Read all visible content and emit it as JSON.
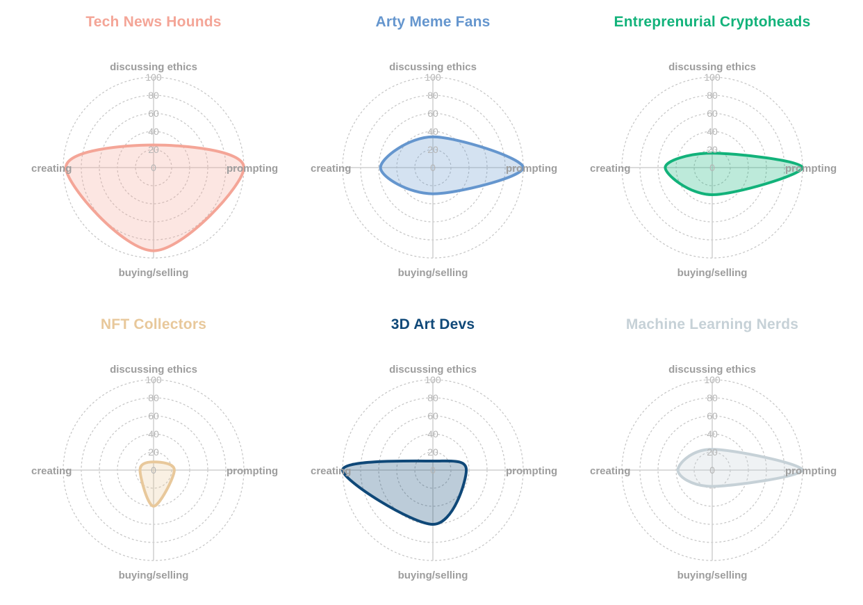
{
  "chart_data": [
    {
      "type": "radar",
      "title": "Tech News Hounds",
      "color": "#f4a597",
      "axes": [
        "discussing ethics",
        "prompting",
        "buying/selling",
        "creating"
      ],
      "values": [
        25,
        100,
        92,
        97
      ],
      "rlim": [
        0,
        100
      ],
      "ticks": [
        0,
        20,
        40,
        60,
        80,
        100
      ]
    },
    {
      "type": "radar",
      "title": "Arty Meme Fans",
      "color": "#6596ce",
      "axes": [
        "discussing ethics",
        "prompting",
        "buying/selling",
        "creating"
      ],
      "values": [
        34,
        100,
        29,
        58
      ],
      "rlim": [
        0,
        100
      ],
      "ticks": [
        0,
        20,
        40,
        60,
        80,
        100
      ]
    },
    {
      "type": "radar",
      "title": "Entreprenurial Cryptoheads",
      "color": "#12b27a",
      "axes": [
        "discussing ethics",
        "prompting",
        "buying/selling",
        "creating"
      ],
      "values": [
        16,
        100,
        30,
        52
      ],
      "rlim": [
        0,
        100
      ],
      "ticks": [
        0,
        20,
        40,
        60,
        80,
        100
      ]
    },
    {
      "type": "radar",
      "title": "NFT Collectors",
      "color": "#e8c89b",
      "axes": [
        "discussing ethics",
        "prompting",
        "buying/selling",
        "creating"
      ],
      "values": [
        9,
        23,
        40,
        15
      ],
      "rlim": [
        0,
        100
      ],
      "ticks": [
        0,
        20,
        40,
        60,
        80,
        100
      ]
    },
    {
      "type": "radar",
      "title": "3D Art Devs",
      "color": "#0f4878",
      "axes": [
        "discussing ethics",
        "prompting",
        "buying/selling",
        "creating"
      ],
      "values": [
        10,
        37,
        60,
        100
      ],
      "rlim": [
        0,
        100
      ],
      "ticks": [
        0,
        20,
        40,
        60,
        80,
        100
      ]
    },
    {
      "type": "radar",
      "title": "Machine Learning Nerds",
      "color": "#c6d1d7",
      "axes": [
        "discussing ethics",
        "prompting",
        "buying/selling",
        "creating"
      ],
      "values": [
        23,
        100,
        18,
        38
      ],
      "rlim": [
        0,
        100
      ],
      "ticks": [
        0,
        20,
        40,
        60,
        80,
        100
      ]
    }
  ]
}
